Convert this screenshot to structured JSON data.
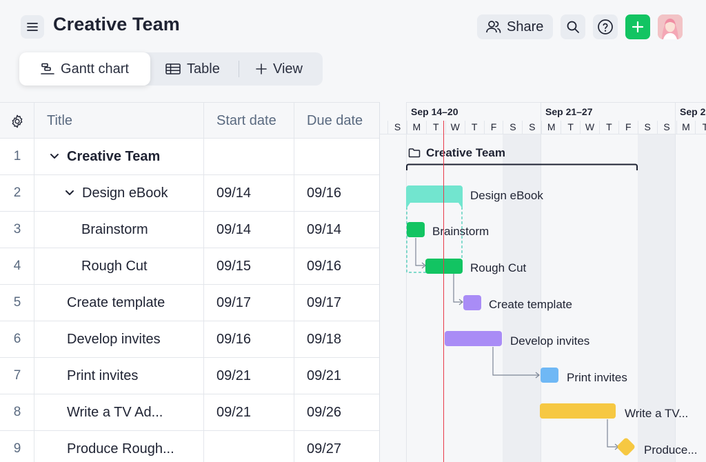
{
  "header": {
    "title": "Creative Team",
    "share_label": "Share"
  },
  "views": {
    "gantt_label": "Gantt chart",
    "table_label": "Table",
    "add_view_label": "View"
  },
  "columns": {
    "title": "Title",
    "start": "Start date",
    "due": "Due date"
  },
  "rows": [
    {
      "num": "1",
      "title": "Creative Team",
      "start": "",
      "due": ""
    },
    {
      "num": "2",
      "title": "Design eBook",
      "start": "09/14",
      "due": "09/16"
    },
    {
      "num": "3",
      "title": "Brainstorm",
      "start": "09/14",
      "due": "09/14"
    },
    {
      "num": "4",
      "title": "Rough Cut",
      "start": "09/15",
      "due": "09/16"
    },
    {
      "num": "5",
      "title": "Create template",
      "start": "09/17",
      "due": "09/17"
    },
    {
      "num": "6",
      "title": "Develop invites",
      "start": "09/16",
      "due": "09/18"
    },
    {
      "num": "7",
      "title": "Print invites",
      "start": "09/21",
      "due": "09/21"
    },
    {
      "num": "8",
      "title": "Write a TV Ad...",
      "start": "09/21",
      "due": "09/26"
    },
    {
      "num": "9",
      "title": "Produce Rough...",
      "start": "",
      "due": "09/27"
    }
  ],
  "timeline": {
    "weeks": [
      "Sep 14–20",
      "Sep 21–27",
      "Sep 2"
    ],
    "days": [
      "S",
      "M",
      "T",
      "W",
      "T",
      "F",
      "S",
      "S",
      "M",
      "T",
      "W",
      "T",
      "F",
      "S",
      "S",
      "M",
      "T"
    ],
    "labels": {
      "project": "Creative Team",
      "design_ebook": "Design eBook",
      "brainstorm": "Brainstorm",
      "rough_cut": "Rough Cut",
      "create_template": "Create template",
      "develop_invites": "Develop invites",
      "print_invites": "Print invites",
      "write_tv": "Write a TV...",
      "produce": "Produce..."
    }
  },
  "colors": {
    "accent_green": "#12c462",
    "teal": "#72e5cf",
    "purple": "#a98cf6",
    "blue": "#6fb8f5",
    "yellow": "#f6c842",
    "today_line": "#e8394a"
  },
  "icons": [
    "menu-icon",
    "share-people-icon",
    "search-icon",
    "help-icon",
    "plus-icon",
    "gantt-icon",
    "table-icon",
    "settings-gear-icon",
    "chevron-down-icon",
    "folder-icon"
  ]
}
